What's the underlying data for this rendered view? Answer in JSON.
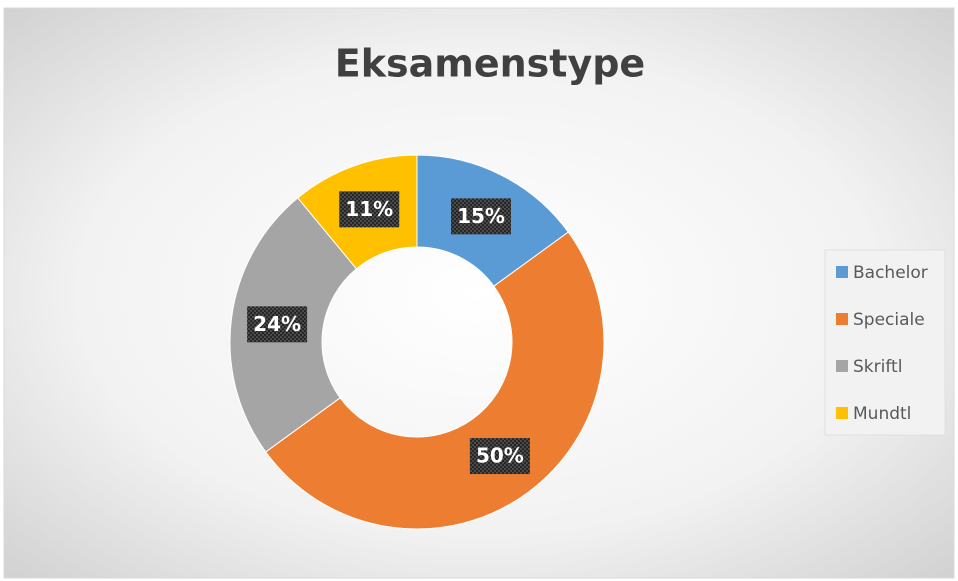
{
  "chart_data": {
    "type": "donut",
    "title": "Eksamenstype",
    "categories": [
      "Bachelor",
      "Speciale",
      "Skriftl",
      "Mundtl"
    ],
    "values": [
      15,
      50,
      24,
      11
    ],
    "value_labels": [
      "15%",
      "50%",
      "24%",
      "11%"
    ],
    "colors": [
      "#5b9bd5",
      "#ed7d31",
      "#a5a5a5",
      "#ffc000"
    ],
    "legend": "right"
  }
}
